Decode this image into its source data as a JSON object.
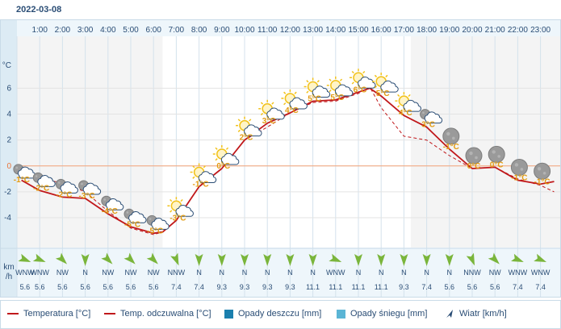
{
  "date": "2022-03-08",
  "chart_data": {
    "type": "line",
    "hours": [
      "1:00",
      "2:00",
      "3:00",
      "4:00",
      "5:00",
      "6:00",
      "7:00",
      "8:00",
      "9:00",
      "10:00",
      "11:00",
      "12:00",
      "13:00",
      "14:00",
      "15:00",
      "16:00",
      "17:00",
      "18:00",
      "19:00",
      "20:00",
      "21:00",
      "22:00",
      "23:00"
    ],
    "x": [
      1,
      2,
      3,
      4,
      5,
      6,
      7,
      8,
      9,
      10,
      11,
      12,
      13,
      14,
      15,
      16,
      17,
      18,
      19,
      20,
      21,
      22,
      23
    ],
    "ylabel": "°C",
    "ylim": [
      -6.3,
      9.7
    ],
    "yticks": [
      "6",
      "4",
      "2",
      "0",
      "-2",
      "-4"
    ],
    "temp_labels": [
      "-1°C",
      "-2°C",
      "-2°C",
      "-3°C",
      "-4°C",
      "-5°C",
      "-5°C",
      "-3°C",
      "-1°C",
      "0°C",
      "2°C",
      "3°C",
      "4°C",
      "5°C",
      "5°C",
      "6°C",
      "5°C",
      "4°C",
      "3°C",
      "-1°C",
      "0°C",
      "0°C",
      "-1°C",
      "-1°C"
    ],
    "weather_icons": [
      "cloudy-night",
      "cloudy-night",
      "cloudy-night",
      "cloudy-night",
      "cloudy-night",
      "cloudy-night",
      "cloudy-night",
      "partly-sunny",
      "partly-sunny",
      "partly-sunny",
      "partly-sunny",
      "partly-sunny",
      "partly-sunny",
      "partly-sunny",
      "partly-sunny",
      "partly-sunny",
      "partly-sunny",
      "partly-sunny",
      "cloudy-night",
      "clear-night",
      "clear-night",
      "clear-night",
      "clear-night",
      "clear-night"
    ],
    "series": [
      {
        "name": "Temperatura [°C]",
        "color": "#c0181b",
        "style": "solid",
        "x": [
          0.2,
          1,
          2,
          3,
          4,
          5,
          6,
          6.4,
          7,
          8,
          9,
          10,
          11,
          12,
          13,
          14,
          15,
          15.5,
          16,
          17,
          18,
          19,
          20,
          21,
          22,
          23,
          23.6
        ],
        "values": [
          -1.1,
          -1.9,
          -2.4,
          -2.5,
          -3.7,
          -4.7,
          -5.2,
          -5.1,
          -4.2,
          -1.6,
          -0.2,
          2.0,
          3.3,
          4.1,
          5.0,
          5.1,
          5.7,
          6.0,
          5.4,
          3.9,
          3.0,
          1.3,
          -0.2,
          -0.1,
          -1.1,
          -1.4,
          -1.2
        ]
      },
      {
        "name": "Temp. odczuwalna [°C]",
        "color": "#c0181b",
        "style": "dashed",
        "x": [
          0.2,
          1,
          2,
          3,
          4,
          5,
          6,
          6.4,
          7,
          8,
          9,
          10,
          11,
          12,
          13,
          14,
          15,
          15.5,
          16,
          17,
          18,
          19,
          20,
          21,
          22,
          23,
          23.6
        ],
        "values": [
          -0.3,
          -1.0,
          -1.3,
          -2.0,
          -3.5,
          -4.8,
          -5.3,
          -5.1,
          -4.2,
          -1.6,
          -0.2,
          2.0,
          3.0,
          4.1,
          4.9,
          5.0,
          5.6,
          6.1,
          4.5,
          2.3,
          2.0,
          0.8,
          -0.2,
          -0.1,
          -1.0,
          -1.5,
          -2.0
        ]
      }
    ],
    "wind_label": "km/h",
    "wind_directions": [
      "WNW",
      "WNW",
      "NW",
      "N",
      "NW",
      "NW",
      "NW",
      "NNW",
      "N",
      "N",
      "N",
      "N",
      "N",
      "N",
      "WNW",
      "N",
      "N",
      "N",
      "N",
      "N",
      "NNW",
      "NW",
      "WNW",
      "WNW"
    ],
    "wind_speeds": [
      "5.6",
      "5.6",
      "5.6",
      "5.6",
      "5.6",
      "5.6",
      "5.6",
      "7.4",
      "7.4",
      "9.3",
      "9.3",
      "9.3",
      "9.3",
      "11.1",
      "11.1",
      "11.1",
      "11.1",
      "9.3",
      "7.4",
      "5.6",
      "5.6",
      "5.6",
      "7.4",
      "7.4"
    ],
    "grid": true
  },
  "legend": {
    "temp": "Temperatura [°C]",
    "feel": "Temp. odczuwalna [°C]",
    "rain": "Opady deszczu [mm]",
    "snow": "Opady śniegu [mm]",
    "wind": "Wiatr [km/h]"
  },
  "colors": {
    "line": "#c0181b",
    "rain": "#1b7fae",
    "snow": "#5bb5d5",
    "wind_arrow": "#7ab53b",
    "sun": "#f2c21a",
    "label": "#e39b10"
  }
}
